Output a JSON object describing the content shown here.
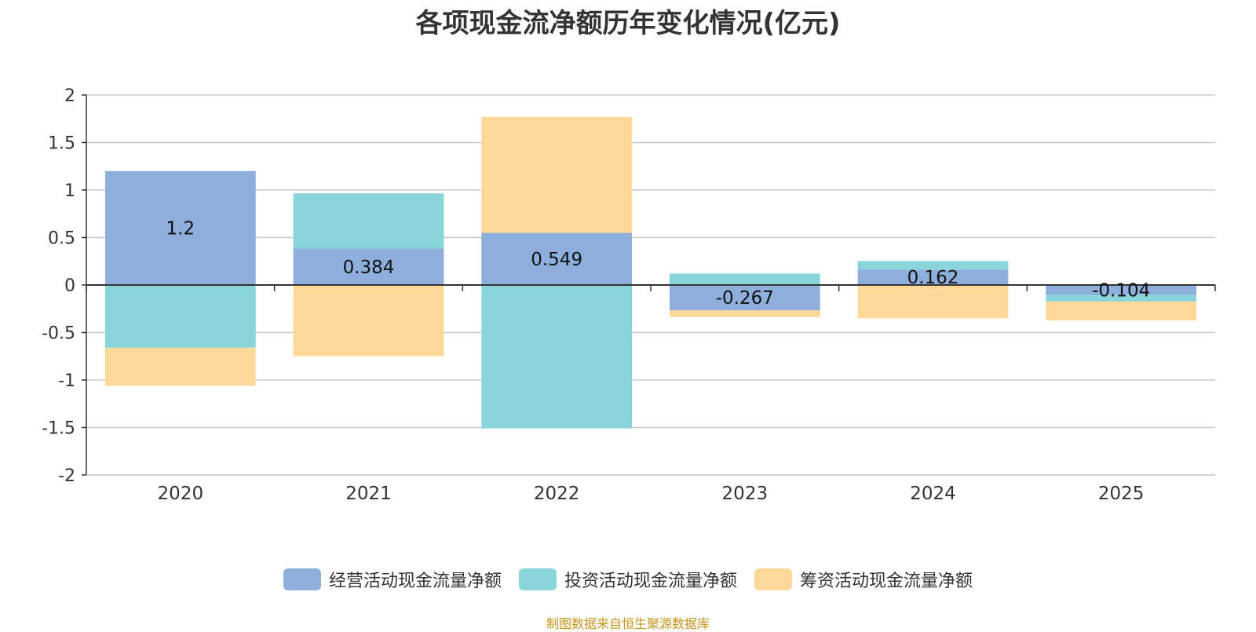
{
  "chart_data": {
    "type": "bar",
    "stacked": true,
    "title": "各项现金流净额历年变化情况(亿元)",
    "categories": [
      "2020",
      "2021",
      "2022",
      "2023",
      "2024",
      "2025"
    ],
    "series": [
      {
        "name": "经营活动现金流量净额",
        "color": "#8eaedc",
        "values": [
          1.2,
          0.384,
          0.549,
          -0.267,
          0.162,
          -0.104
        ]
      },
      {
        "name": "投资活动现金流量净额",
        "color": "#88d6d9",
        "values": [
          -0.66,
          0.58,
          -1.51,
          0.12,
          0.09,
          -0.07
        ]
      },
      {
        "name": "筹资活动现金流量净额",
        "color": "#fed899",
        "values": [
          -0.4,
          -0.75,
          1.22,
          -0.07,
          -0.35,
          -0.2
        ]
      }
    ],
    "data_labels": [
      "1.2",
      "0.384",
      "0.549",
      "-0.267",
      "0.162",
      "-0.104"
    ],
    "ylim": [
      -2,
      2
    ],
    "yticks": [
      2,
      1.5,
      1,
      0.5,
      0,
      -0.5,
      -1,
      -1.5,
      -2
    ],
    "ytick_labels": [
      "2",
      "1.5",
      "1",
      "0.5",
      "0",
      "-0.5",
      "-1",
      "-1.5",
      "-2"
    ],
    "grid": true,
    "legend_position": "bottom-center"
  },
  "source": "制图数据来自恒生聚源数据库"
}
